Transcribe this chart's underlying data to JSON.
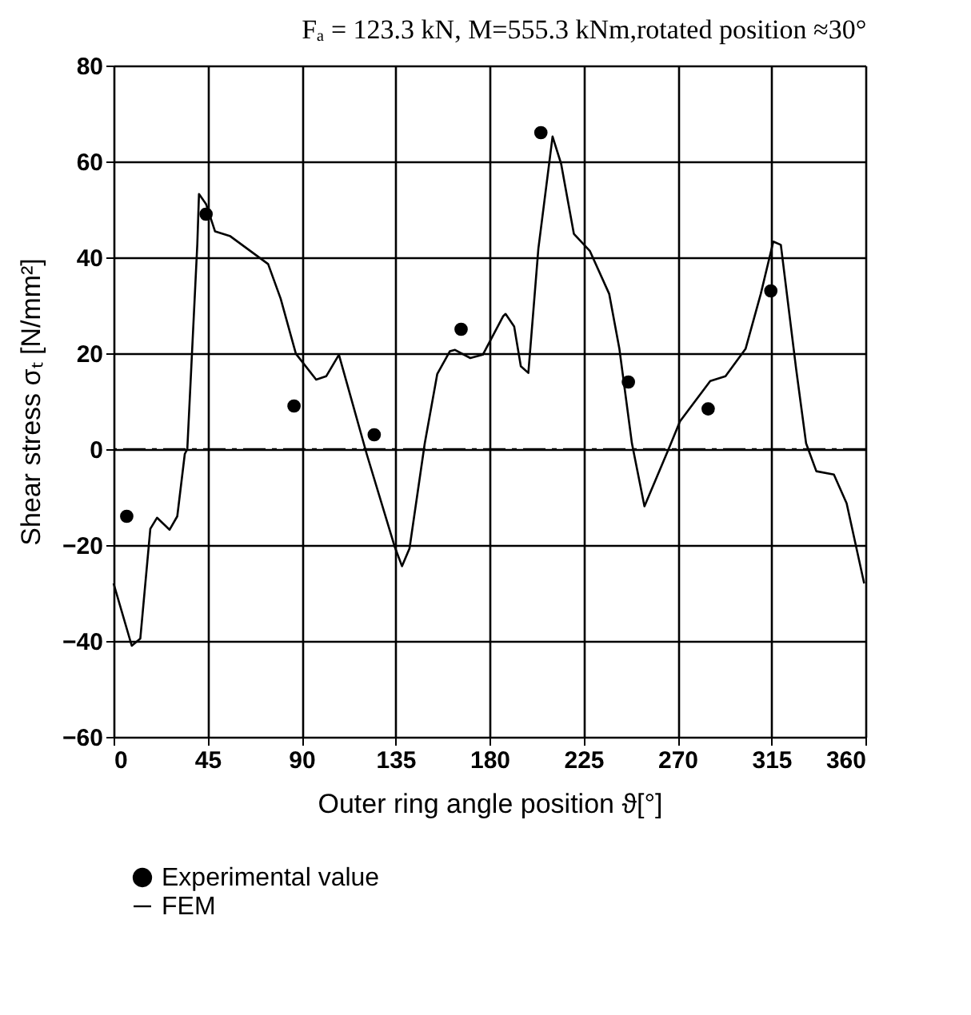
{
  "chart_data": {
    "type": "line",
    "title": "Fₐ = 123.3 kN, M=555.3 kNm,rotated position ≈30°",
    "xlabel": "Outer ring angle position ϑ[°]",
    "ylabel": "Shear stress σₜ [N/mm²]",
    "xlim": [
      0,
      360
    ],
    "xticks": [
      0,
      45,
      90,
      135,
      180,
      225,
      270,
      315,
      360
    ],
    "ylim": [
      -60,
      80
    ],
    "yticks": [
      -60,
      -40,
      -20,
      0,
      20,
      40,
      60,
      80
    ],
    "grid": true,
    "legend": "bottom left",
    "ref_lines": [
      {
        "axis": "y",
        "value": 0,
        "line_style": "dashed",
        "color": "#000000"
      }
    ],
    "series": [
      {
        "name": "Experimental value",
        "type": "scatter",
        "marker": "circle",
        "color": "#000000",
        "x": [
          6.3,
          44.3,
          86.4,
          124.8,
          166.4,
          204.6,
          246.5,
          284.7,
          314.7
        ],
        "values": [
          -14,
          49,
          9,
          3,
          25,
          66,
          14,
          8.4,
          33
        ]
      },
      {
        "name": "FEM",
        "line_style": "solid",
        "color": "#000000",
        "x": [
          0,
          8.7,
          12.8,
          17.6,
          20.8,
          26.8,
          30.5,
          34.1,
          35.3,
          40.1,
          40.9,
          44.3,
          48.6,
          55.9,
          74,
          80,
          87.3,
          97,
          101.8,
          107.9,
          121.2,
          134.5,
          138.1,
          141.7,
          149,
          155,
          161,
          163.5,
          170.8,
          176.8,
          186.5,
          187.7,
          191.8,
          195,
          198.6,
          203.4,
          210.2,
          214.3,
          220.4,
          228.1,
          237.3,
          242.2,
          248.2,
          254.2,
          266.3,
          271.2,
          285.7,
          293,
          302.6,
          309.9,
          315.9,
          319.5,
          326.8,
          331.6,
          336.5,
          344.9,
          351,
          359.4
        ],
        "values": [
          -28,
          -41,
          -39.5,
          -16.6,
          -14.3,
          -16.8,
          -14,
          -1,
          0,
          42.8,
          53.2,
          51.1,
          45.4,
          44.4,
          38.6,
          31.4,
          19.9,
          14.5,
          15.2,
          19.7,
          -1,
          -20.2,
          -24.4,
          -20.7,
          1.2,
          15.7,
          20.4,
          20.7,
          19,
          19.7,
          27.7,
          28.2,
          25.6,
          17.3,
          15.9,
          41.8,
          65.2,
          59.5,
          44.9,
          41.3,
          32.4,
          20.9,
          1.2,
          -11.9,
          0.6,
          5.8,
          14.2,
          15.2,
          20.9,
          32.4,
          43.3,
          42.6,
          16.8,
          1.2,
          -4.6,
          -5.3,
          -11.3,
          -28
        ]
      }
    ]
  }
}
